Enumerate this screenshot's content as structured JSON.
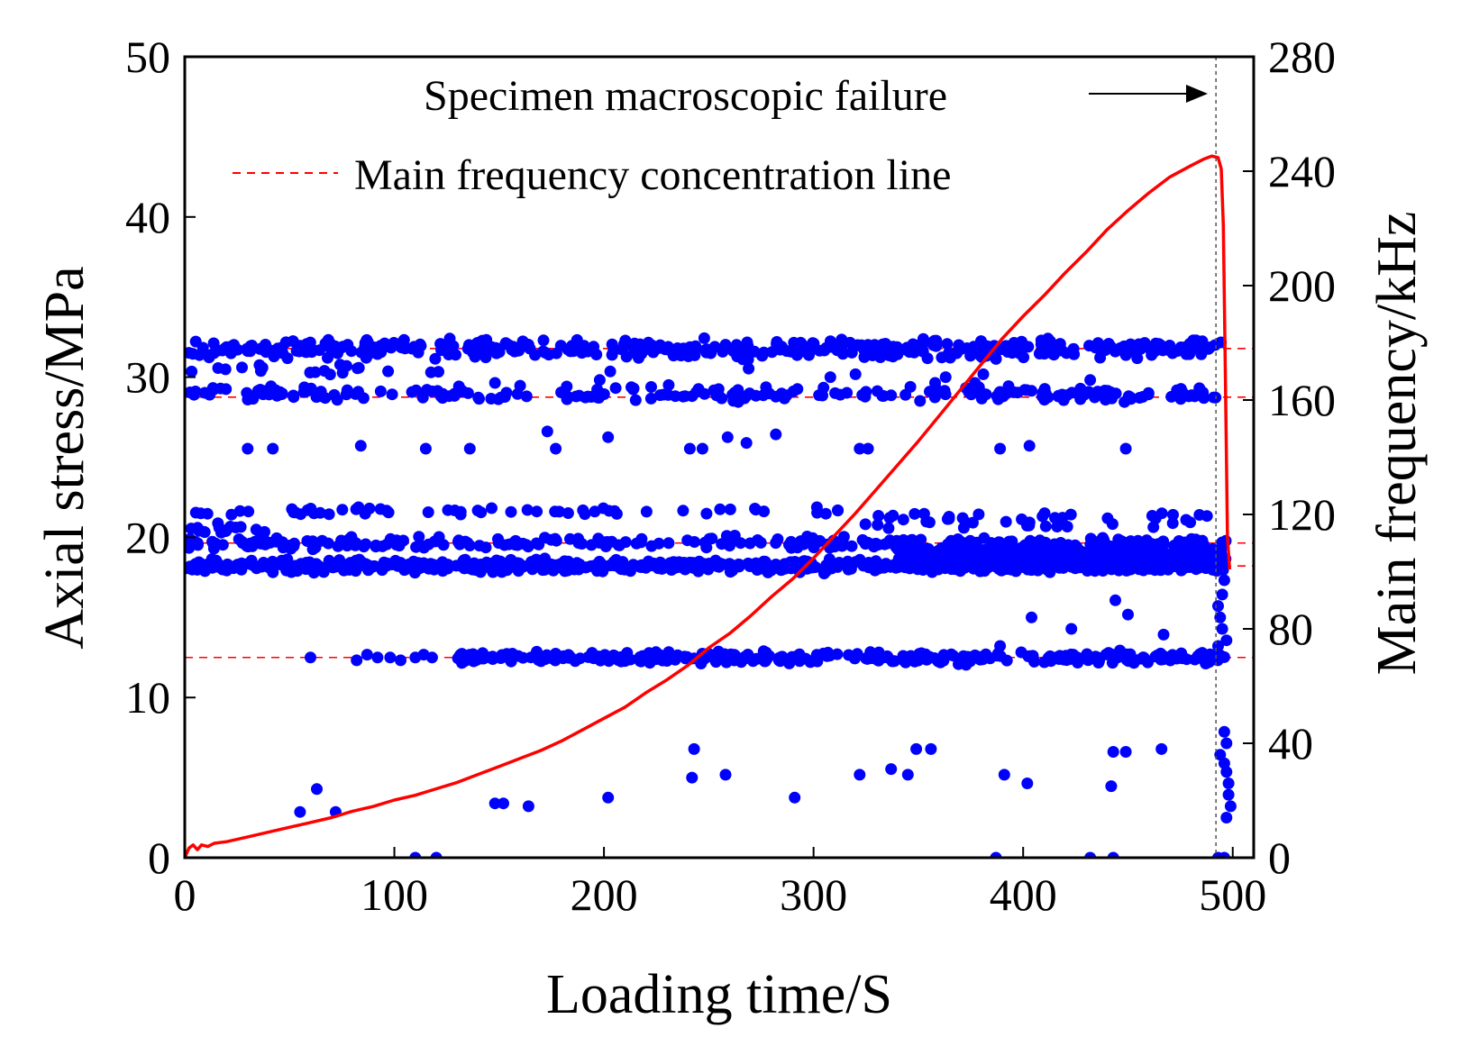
{
  "chart_data": {
    "type": "scatter",
    "xlabel": "Loading time/S",
    "ylabel_left": "Axial stress/MPa",
    "ylabel_right": "Main frequency/kHz",
    "xlim": [
      0,
      510
    ],
    "ylim_left": [
      0,
      50
    ],
    "ylim_right": [
      0,
      280
    ],
    "x_ticks": [
      0,
      100,
      200,
      300,
      400,
      500
    ],
    "y_left_ticks": [
      0,
      10,
      20,
      30,
      40,
      50
    ],
    "y_right_ticks": [
      0,
      40,
      80,
      120,
      160,
      200,
      240,
      280
    ],
    "grid": false,
    "annotations": {
      "failure_label": "Specimen macroscopic failure",
      "failure_time": 492,
      "legend_label": "Main frequency concentration line"
    },
    "concentration_lines_khz": [
      178,
      161,
      110,
      102,
      70
    ],
    "colors": {
      "stress_curve": "#ff0000",
      "scatter": "#0000ff",
      "concentration_line": "#ff0000",
      "failure_line": "#555555"
    },
    "series": [
      {
        "name": "Axial stress",
        "axis": "left",
        "style": "line",
        "points": [
          [
            0,
            0
          ],
          [
            2,
            0.6
          ],
          [
            4,
            0.8
          ],
          [
            6,
            0.5
          ],
          [
            8,
            0.8
          ],
          [
            11,
            0.7
          ],
          [
            14,
            0.9
          ],
          [
            20,
            1.0
          ],
          [
            30,
            1.3
          ],
          [
            40,
            1.6
          ],
          [
            50,
            1.9
          ],
          [
            60,
            2.2
          ],
          [
            70,
            2.5
          ],
          [
            80,
            2.9
          ],
          [
            90,
            3.2
          ],
          [
            100,
            3.6
          ],
          [
            110,
            3.9
          ],
          [
            120,
            4.3
          ],
          [
            130,
            4.7
          ],
          [
            140,
            5.2
          ],
          [
            150,
            5.7
          ],
          [
            160,
            6.2
          ],
          [
            170,
            6.7
          ],
          [
            180,
            7.3
          ],
          [
            190,
            8.0
          ],
          [
            200,
            8.7
          ],
          [
            210,
            9.4
          ],
          [
            220,
            10.3
          ],
          [
            230,
            11.1
          ],
          [
            240,
            12.0
          ],
          [
            250,
            13.1
          ],
          [
            260,
            14.0
          ],
          [
            270,
            15.1
          ],
          [
            280,
            16.3
          ],
          [
            290,
            17.4
          ],
          [
            300,
            18.7
          ],
          [
            310,
            20.1
          ],
          [
            320,
            21.5
          ],
          [
            330,
            23.0
          ],
          [
            340,
            24.5
          ],
          [
            350,
            26.0
          ],
          [
            360,
            27.6
          ],
          [
            370,
            29.2
          ],
          [
            380,
            30.8
          ],
          [
            390,
            32.4
          ],
          [
            400,
            33.8
          ],
          [
            410,
            35.1
          ],
          [
            420,
            36.5
          ],
          [
            430,
            37.8
          ],
          [
            440,
            39.2
          ],
          [
            450,
            40.4
          ],
          [
            460,
            41.5
          ],
          [
            470,
            42.5
          ],
          [
            480,
            43.2
          ],
          [
            486,
            43.6
          ],
          [
            490,
            43.8
          ],
          [
            493,
            43.7
          ],
          [
            494.5,
            43.0
          ],
          [
            495.5,
            39.5
          ],
          [
            496.5,
            30
          ],
          [
            497.5,
            20
          ],
          [
            498.5,
            18
          ]
        ]
      },
      {
        "name": "Main frequency",
        "axis": "right",
        "style": "scatter",
        "bands": [
          {
            "center": 178,
            "spread": 3,
            "x_range": [
              1,
              497
            ],
            "density": 0.9
          },
          {
            "center": 170,
            "spread": 2,
            "x_range": [
              1,
              130
            ],
            "density": 0.15
          },
          {
            "center": 162,
            "spread": 2.5,
            "x_range": [
              1,
              497
            ],
            "density": 0.45
          },
          {
            "center": 121,
            "spread": 1.5,
            "x_range": [
              1,
              320
            ],
            "density": 0.18
          },
          {
            "center": 118,
            "spread": 3,
            "x_range": [
              320,
              497
            ],
            "density": 0.25
          },
          {
            "center": 115,
            "spread": 2,
            "x_range": [
              1,
              40
            ],
            "density": 0.4
          },
          {
            "center": 110,
            "spread": 2,
            "x_range": [
              1,
              497
            ],
            "density": 0.5
          },
          {
            "center": 106,
            "spread": 3,
            "x_range": [
              340,
              497
            ],
            "density": 2.2
          },
          {
            "center": 102,
            "spread": 2,
            "x_range": [
              1,
              497
            ],
            "density": 1.4
          },
          {
            "center": 70,
            "spread": 2,
            "x_range": [
              130,
              497
            ],
            "density": 0.9
          }
        ],
        "points": [
          [
            60,
            70
          ],
          [
            82,
            69
          ],
          [
            87,
            71
          ],
          [
            92,
            70
          ],
          [
            98,
            70
          ],
          [
            103,
            69
          ],
          [
            110,
            70
          ],
          [
            114,
            71
          ],
          [
            118,
            70
          ],
          [
            30,
            143
          ],
          [
            42,
            143
          ],
          [
            84,
            144
          ],
          [
            115,
            143
          ],
          [
            136,
            143
          ],
          [
            173,
            149
          ],
          [
            177,
            143
          ],
          [
            202,
            147
          ],
          [
            241,
            143
          ],
          [
            247,
            143
          ],
          [
            259,
            147
          ],
          [
            268,
            145
          ],
          [
            282,
            148
          ],
          [
            322,
            143
          ],
          [
            326,
            143
          ],
          [
            389,
            143
          ],
          [
            403,
            144
          ],
          [
            449,
            143
          ],
          [
            148,
            166
          ],
          [
            160,
            165
          ],
          [
            198,
            167
          ],
          [
            203,
            170
          ],
          [
            269,
            171
          ],
          [
            308,
            168
          ],
          [
            320,
            169
          ],
          [
            358,
            166
          ],
          [
            363,
            168
          ],
          [
            377,
            166
          ],
          [
            381,
            169
          ],
          [
            432,
            167
          ],
          [
            55,
            16
          ],
          [
            63,
            24
          ],
          [
            72,
            16
          ],
          [
            148,
            19
          ],
          [
            152,
            19
          ],
          [
            164,
            18
          ],
          [
            202,
            21
          ],
          [
            243,
            38
          ],
          [
            242,
            28
          ],
          [
            258,
            29
          ],
          [
            291,
            21
          ],
          [
            322,
            29
          ],
          [
            337,
            31
          ],
          [
            345,
            29
          ],
          [
            349,
            38
          ],
          [
            356,
            38
          ],
          [
            391,
            29
          ],
          [
            402,
            26
          ],
          [
            442,
            25
          ],
          [
            443,
            37
          ],
          [
            449,
            37
          ],
          [
            466,
            38
          ],
          [
            389,
            74
          ],
          [
            404,
            84
          ],
          [
            423,
            80
          ],
          [
            444,
            90
          ],
          [
            450,
            85
          ],
          [
            467,
            78
          ],
          [
            110,
            0
          ],
          [
            120,
            0
          ],
          [
            387,
            0
          ],
          [
            432,
            0
          ],
          [
            443,
            0
          ],
          [
            493,
            0
          ],
          [
            496,
            0
          ],
          [
            494,
            36
          ],
          [
            496,
            33
          ],
          [
            497,
            30
          ],
          [
            498,
            26
          ],
          [
            498,
            22
          ],
          [
            499,
            18
          ],
          [
            497,
            40
          ],
          [
            497,
            14
          ],
          [
            496,
            44
          ],
          [
            494,
            84
          ],
          [
            493,
            88
          ],
          [
            495,
            92
          ],
          [
            496,
            97
          ],
          [
            497,
            76
          ],
          [
            495,
            80
          ],
          [
            493,
            74
          ]
        ]
      }
    ]
  }
}
